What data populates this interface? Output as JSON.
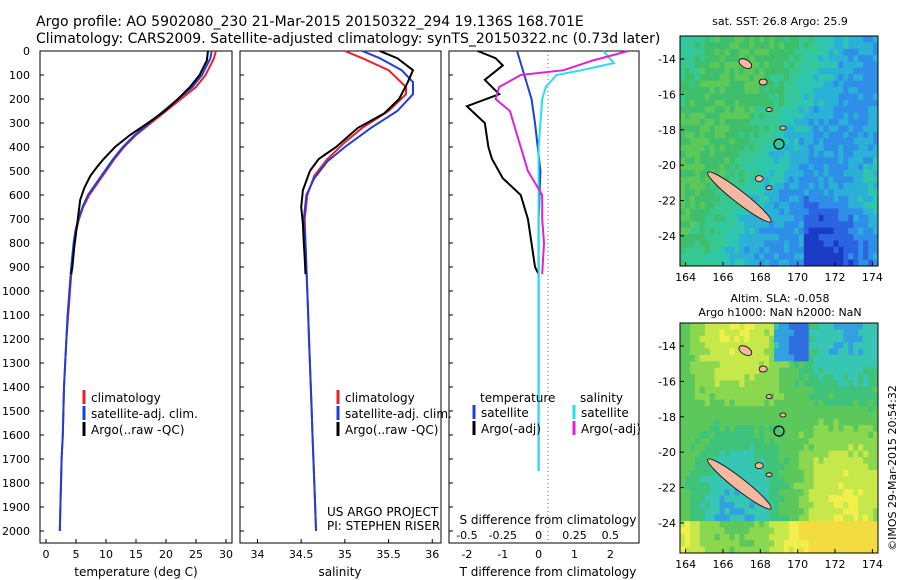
{
  "header": {
    "line1": "Argo profile: AO 5902080_230 21-Mar-2015 20150322_294 19.136S 168.701E",
    "line2": "Climatology: CARS2009. Satellite-adjusted climatology: synTS_20150322.nc (0.73d later)"
  },
  "colors": {
    "climatology": "#e8202a",
    "satellite": "#1f3fd6",
    "argo": "#000000",
    "sat_salinity": "#22e0ee",
    "argo_salinity": "#e020d8"
  },
  "depth_ticks": [
    "0",
    "100",
    "200",
    "300",
    "400",
    "500",
    "600",
    "700",
    "800",
    "900",
    "1000",
    "1100",
    "1200",
    "1300",
    "1400",
    "1500",
    "1600",
    "1700",
    "1800",
    "1900",
    "2000"
  ],
  "temperature_panel": {
    "xlabel": "temperature (deg C)",
    "xticks": [
      "0",
      "5",
      "10",
      "15",
      "20",
      "25",
      "30"
    ],
    "legend": [
      "climatology",
      "satellite-adj. clim.",
      "Argo(..raw -QC)"
    ]
  },
  "salinity_panel": {
    "xlabel": "salinity",
    "xticks": [
      "34",
      "34.5",
      "35",
      "35.5",
      "36"
    ],
    "legend": [
      "climatology",
      "satellite-adj. clim.",
      "Argo(..raw -QC)"
    ],
    "credit1": "US ARGO PROJECT",
    "credit2": "PI: STEPHEN RISER"
  },
  "difference_panel": {
    "top_label": "S difference from climatology",
    "s_ticks": [
      "-0.5",
      "-0.25",
      "0",
      "0.25",
      "0.5"
    ],
    "t_ticks": [
      "-2",
      "-1",
      "0",
      "1",
      "2"
    ],
    "xlabel": "T difference from climatology",
    "legend_temp_title": "temperature",
    "legend_sal_title": "salinity",
    "legend_temp": [
      "satellite",
      "Argo(-adj)"
    ],
    "legend_sal": [
      "satellite",
      "Argo(-adj)"
    ]
  },
  "map_sst": {
    "title": "sat. SST: 26.8 Argo: 25.9",
    "lat_ticks": [
      "-14",
      "-16",
      "-18",
      "-20",
      "-22",
      "-24"
    ],
    "lon_ticks": [
      "164",
      "166",
      "168",
      "170",
      "172",
      "174"
    ]
  },
  "map_sla": {
    "title1": "Altim. SLA: -0.058",
    "title2": "Argo h1000: NaN h2000: NaN",
    "lat_ticks": [
      "-14",
      "-16",
      "-18",
      "-20",
      "-22",
      "-24"
    ],
    "lon_ticks": [
      "164",
      "166",
      "168",
      "170",
      "172",
      "174"
    ]
  },
  "credit_vertical": "©IMOS 29-Mar-2015 20:54:32",
  "chart_data": [
    {
      "type": "line",
      "title": "",
      "xlabel": "temperature (deg C)",
      "ylabel": "",
      "xlim": [
        -1,
        31
      ],
      "ylim": [
        2000,
        0
      ],
      "series": [
        {
          "name": "climatology",
          "points": [
            [
              28.3,
              0
            ],
            [
              28.0,
              30
            ],
            [
              26.6,
              100
            ],
            [
              25.0,
              150
            ],
            [
              22.5,
              200
            ],
            [
              20.0,
              250
            ],
            [
              17.5,
              300
            ],
            [
              15.0,
              350
            ],
            [
              13.0,
              400
            ],
            [
              11.4,
              450
            ],
            [
              10.0,
              500
            ],
            [
              8.6,
              550
            ],
            [
              7.2,
              600
            ],
            [
              6.2,
              650
            ],
            [
              5.5,
              700
            ],
            [
              5.0,
              750
            ],
            [
              4.7,
              800
            ],
            [
              4.5,
              850
            ],
            [
              4.3,
              900
            ],
            [
              4.0,
              1000
            ],
            [
              3.7,
              1100
            ],
            [
              3.4,
              1200
            ],
            [
              3.2,
              1300
            ],
            [
              3.0,
              1400
            ],
            [
              2.9,
              1500
            ],
            [
              2.8,
              1600
            ],
            [
              2.6,
              1700
            ],
            [
              2.5,
              1800
            ],
            [
              2.4,
              1900
            ],
            [
              2.3,
              2000
            ]
          ]
        },
        {
          "name": "satellite-adj. clim.",
          "points": [
            [
              27.6,
              0
            ],
            [
              27.4,
              30
            ],
            [
              26.0,
              100
            ],
            [
              24.4,
              150
            ],
            [
              22.0,
              200
            ],
            [
              19.6,
              250
            ],
            [
              17.2,
              300
            ],
            [
              14.8,
              350
            ],
            [
              12.8,
              400
            ],
            [
              11.2,
              450
            ],
            [
              9.8,
              500
            ],
            [
              8.4,
              550
            ],
            [
              7.0,
              600
            ],
            [
              6.1,
              650
            ],
            [
              5.4,
              700
            ],
            [
              4.9,
              750
            ],
            [
              4.6,
              800
            ],
            [
              4.4,
              850
            ],
            [
              4.2,
              900
            ],
            [
              3.9,
              1000
            ],
            [
              3.6,
              1100
            ],
            [
              3.4,
              1200
            ],
            [
              3.2,
              1300
            ],
            [
              3.0,
              1400
            ],
            [
              2.9,
              1500
            ],
            [
              2.8,
              1600
            ],
            [
              2.6,
              1700
            ],
            [
              2.5,
              1800
            ],
            [
              2.4,
              1900
            ],
            [
              2.3,
              2000
            ]
          ]
        },
        {
          "name": "Argo(..raw -QC)",
          "points": [
            [
              27.0,
              0
            ],
            [
              26.8,
              40
            ],
            [
              25.6,
              100
            ],
            [
              24.0,
              150
            ],
            [
              22.0,
              200
            ],
            [
              19.8,
              250
            ],
            [
              17.0,
              300
            ],
            [
              14.0,
              350
            ],
            [
              11.5,
              400
            ],
            [
              9.6,
              450
            ],
            [
              8.6,
              480
            ],
            [
              7.4,
              520
            ],
            [
              6.4,
              570
            ],
            [
              5.7,
              620
            ],
            [
              5.3,
              700
            ],
            [
              5.0,
              760
            ],
            [
              4.7,
              820
            ],
            [
              4.4,
              900
            ],
            [
              4.2,
              930
            ]
          ]
        }
      ]
    },
    {
      "type": "line",
      "title": "",
      "xlabel": "salinity",
      "ylabel": "",
      "xlim": [
        33.8,
        36.1
      ],
      "ylim": [
        2000,
        0
      ],
      "series": [
        {
          "name": "climatology",
          "points": [
            [
              35.0,
              0
            ],
            [
              35.2,
              30
            ],
            [
              35.5,
              80
            ],
            [
              35.7,
              150
            ],
            [
              35.7,
              180
            ],
            [
              35.5,
              250
            ],
            [
              35.2,
              320
            ],
            [
              35.0,
              380
            ],
            [
              34.8,
              450
            ],
            [
              34.65,
              520
            ],
            [
              34.57,
              600
            ],
            [
              34.54,
              700
            ],
            [
              34.55,
              800
            ],
            [
              34.56,
              900
            ],
            [
              34.57,
              1000
            ],
            [
              34.58,
              1100
            ],
            [
              34.59,
              1200
            ],
            [
              34.6,
              1300
            ],
            [
              34.61,
              1400
            ],
            [
              34.62,
              1500
            ],
            [
              34.63,
              1600
            ],
            [
              34.64,
              1700
            ],
            [
              34.65,
              1800
            ],
            [
              34.66,
              1900
            ],
            [
              34.67,
              2000
            ]
          ]
        },
        {
          "name": "satellite-adj. clim.",
          "points": [
            [
              35.2,
              0
            ],
            [
              35.4,
              30
            ],
            [
              35.65,
              80
            ],
            [
              35.78,
              130
            ],
            [
              35.78,
              180
            ],
            [
              35.6,
              250
            ],
            [
              35.3,
              320
            ],
            [
              35.0,
              400
            ],
            [
              34.8,
              460
            ],
            [
              34.65,
              530
            ],
            [
              34.56,
              600
            ],
            [
              34.53,
              700
            ],
            [
              34.55,
              800
            ],
            [
              34.56,
              900
            ],
            [
              34.57,
              1000
            ],
            [
              34.58,
              1100
            ],
            [
              34.59,
              1200
            ],
            [
              34.6,
              1300
            ],
            [
              34.61,
              1400
            ],
            [
              34.62,
              1500
            ],
            [
              34.63,
              1600
            ],
            [
              34.64,
              1700
            ],
            [
              34.65,
              1800
            ],
            [
              34.66,
              1900
            ],
            [
              34.67,
              2000
            ]
          ]
        },
        {
          "name": "Argo(..raw -QC)",
          "points": [
            [
              35.4,
              0
            ],
            [
              35.6,
              30
            ],
            [
              35.78,
              80
            ],
            [
              35.72,
              130
            ],
            [
              35.62,
              200
            ],
            [
              35.45,
              260
            ],
            [
              35.15,
              320
            ],
            [
              34.9,
              400
            ],
            [
              34.7,
              450
            ],
            [
              34.6,
              500
            ],
            [
              34.52,
              580
            ],
            [
              34.5,
              650
            ],
            [
              34.52,
              720
            ],
            [
              34.53,
              800
            ],
            [
              34.54,
              860
            ],
            [
              34.55,
              930
            ]
          ]
        }
      ]
    },
    {
      "type": "line",
      "title": "",
      "xlabel": "T difference from climatology",
      "ylabel": "",
      "xlim": [
        -2.5,
        2.8
      ],
      "ylim": [
        2000,
        0
      ],
      "series": [
        {
          "name": "satellite",
          "points": [
            [
              -0.6,
              0
            ],
            [
              -0.5,
              50
            ],
            [
              -0.4,
              100
            ],
            [
              -0.3,
              150
            ],
            [
              -0.2,
              200
            ],
            [
              -0.1,
              300
            ],
            [
              0.05,
              500
            ],
            [
              0.0,
              700
            ],
            [
              0.0,
              1000
            ],
            [
              0.0,
              1300
            ],
            [
              0.0,
              1600
            ],
            [
              0.0,
              1750
            ]
          ]
        },
        {
          "name": "Argo(-adj)",
          "points": [
            [
              -1.7,
              0
            ],
            [
              -1.2,
              30
            ],
            [
              -1.0,
              60
            ],
            [
              -1.5,
              120
            ],
            [
              -1.1,
              180
            ],
            [
              -2.0,
              230
            ],
            [
              -1.5,
              300
            ],
            [
              -1.4,
              400
            ],
            [
              -1.3,
              450
            ],
            [
              -1.0,
              530
            ],
            [
              -0.5,
              600
            ],
            [
              -0.3,
              700
            ],
            [
              -0.2,
              800
            ],
            [
              -0.1,
              900
            ],
            [
              0.0,
              930
            ]
          ]
        },
        {
          "name": "satellite",
          "points": [
            [
              1.8,
              0
            ],
            [
              2.1,
              50
            ],
            [
              1.2,
              80
            ],
            [
              0.5,
              100
            ],
            [
              0.2,
              150
            ],
            [
              0.1,
              200
            ],
            [
              0.0,
              400
            ],
            [
              0.0,
              700
            ],
            [
              0.0,
              1000
            ],
            [
              0.0,
              1750
            ]
          ]
        },
        {
          "name": "Argo(-adj)",
          "points": [
            [
              2.5,
              0
            ],
            [
              1.5,
              40
            ],
            [
              0.7,
              80
            ],
            [
              -0.5,
              100
            ],
            [
              -1.1,
              150
            ],
            [
              -1.2,
              200
            ],
            [
              -0.8,
              250
            ],
            [
              -0.5,
              400
            ],
            [
              -0.3,
              500
            ],
            [
              0.1,
              600
            ],
            [
              0.1,
              700
            ],
            [
              0.15,
              800
            ],
            [
              0.1,
              930
            ]
          ]
        }
      ]
    }
  ]
}
